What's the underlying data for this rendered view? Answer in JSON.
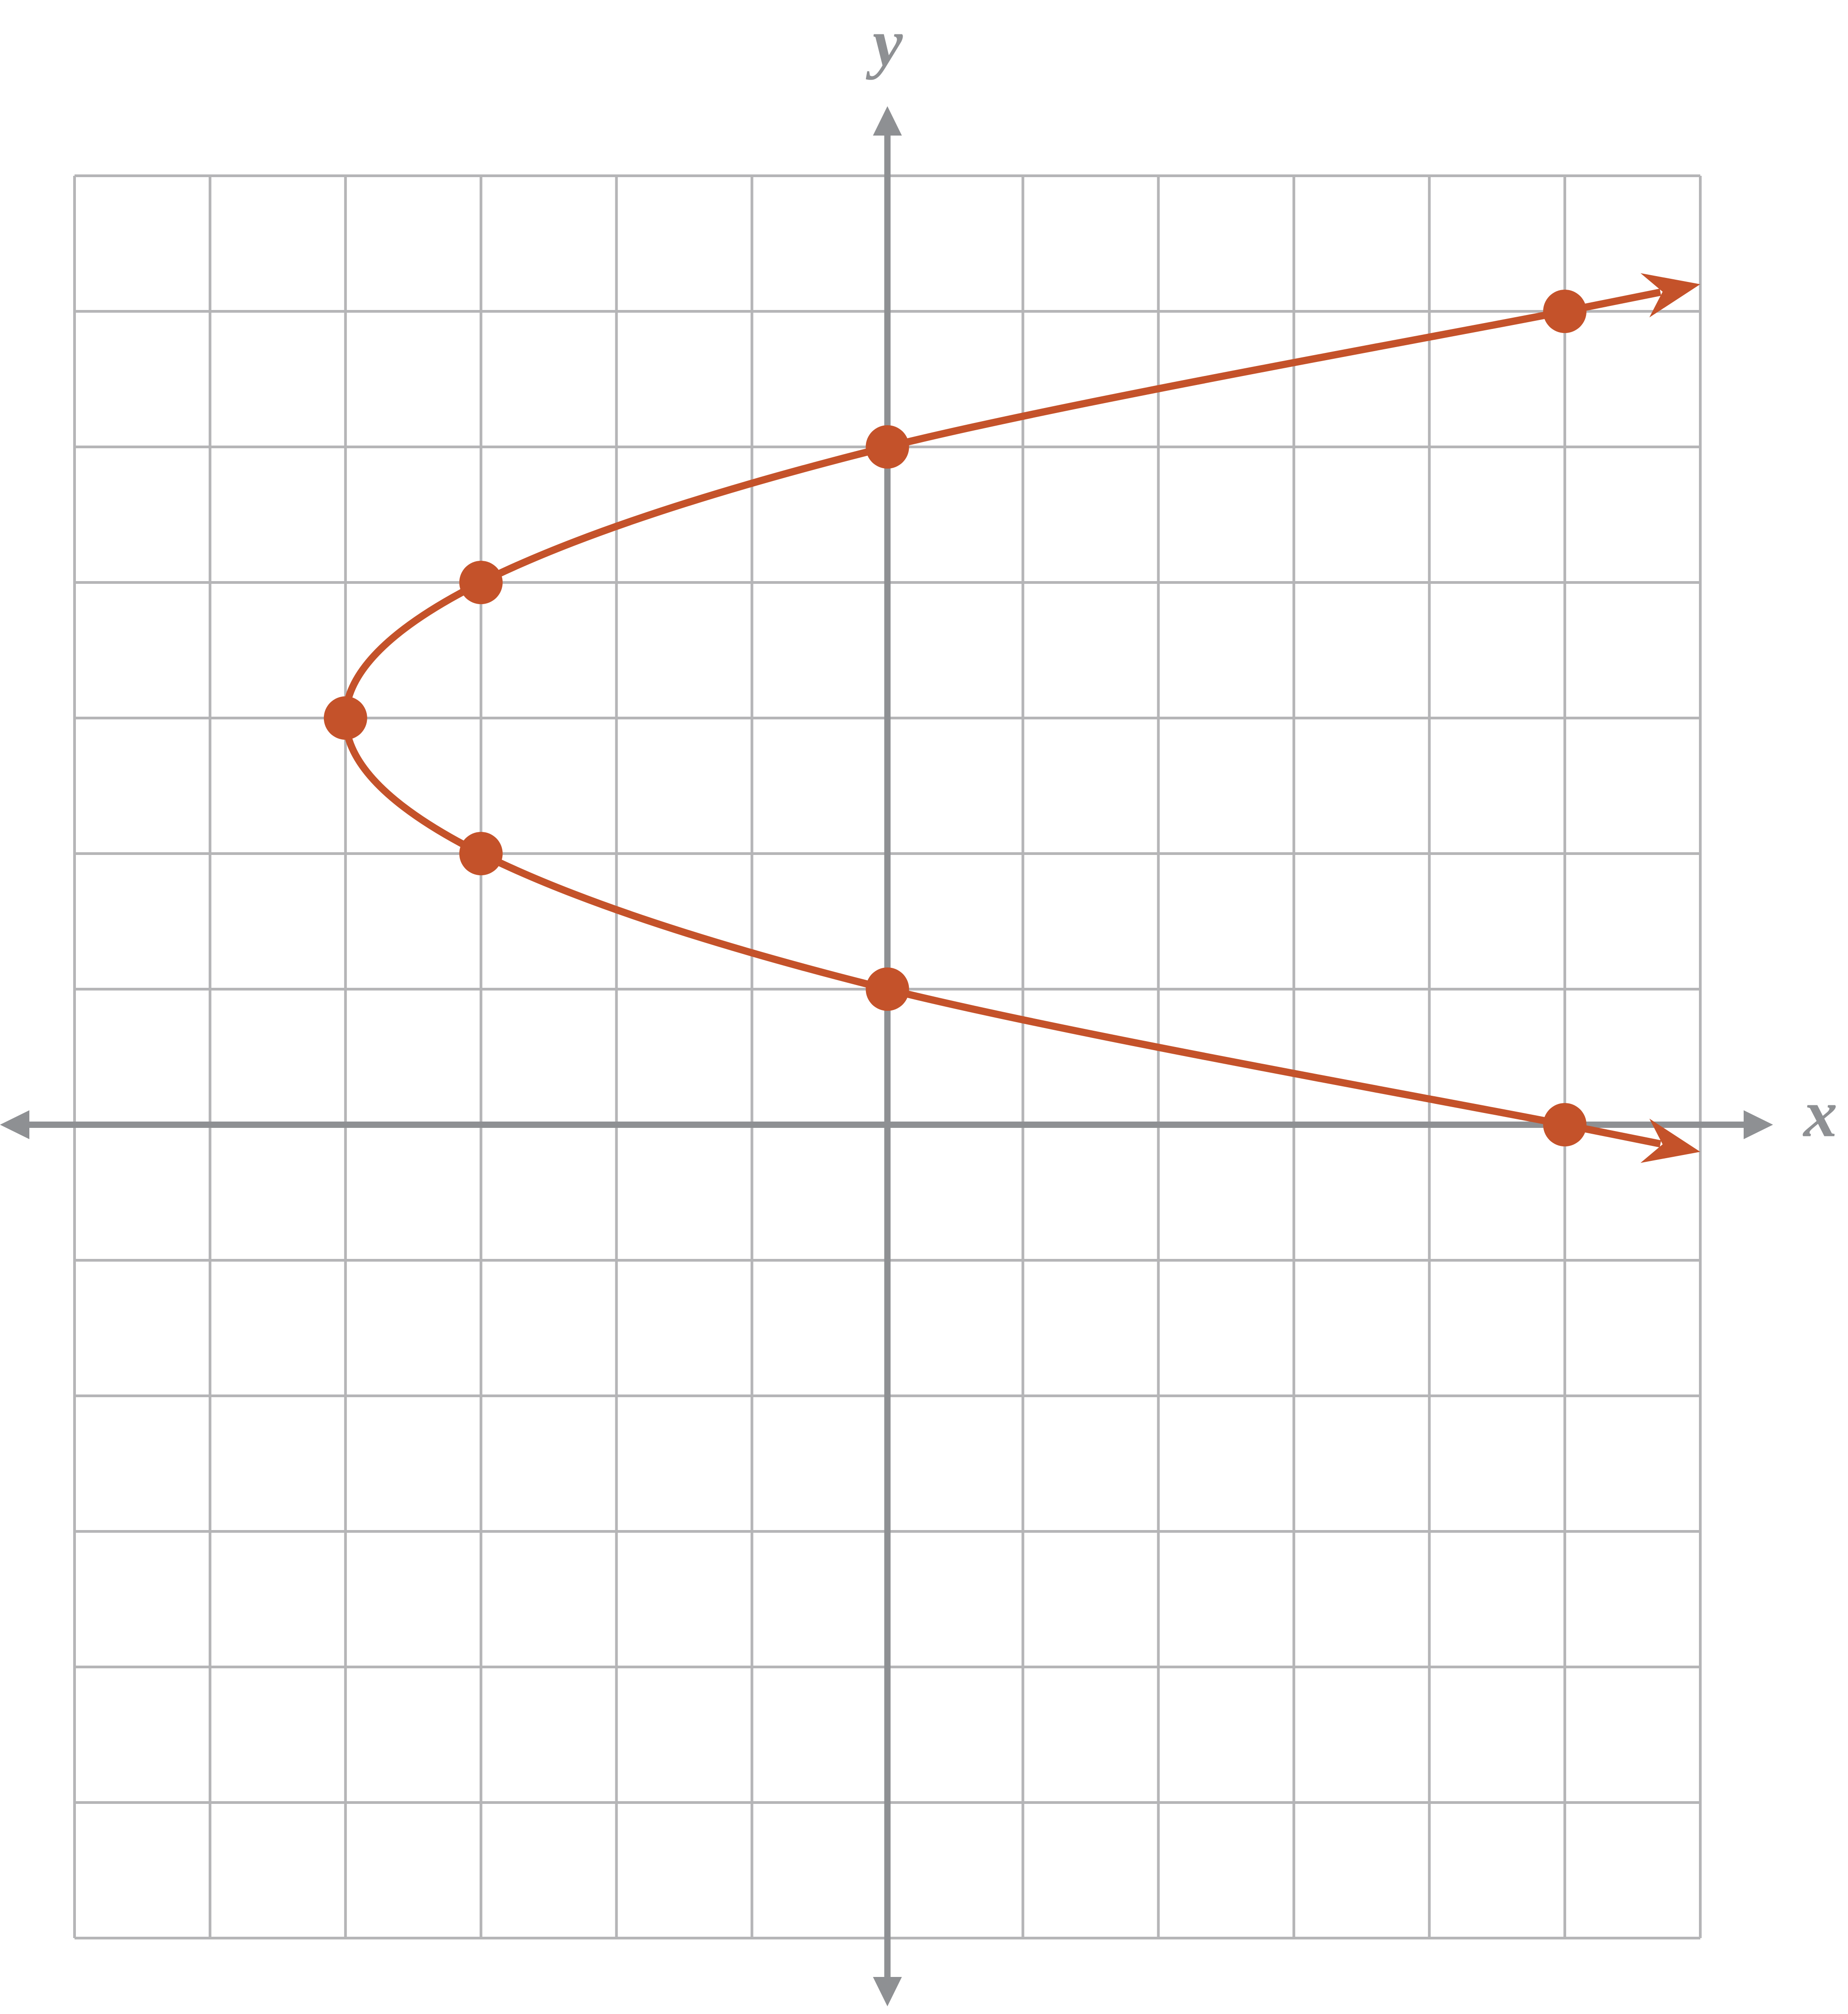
{
  "chart_data": {
    "type": "scatter",
    "x_label": "x",
    "y_label": "y",
    "x": [
      5,
      0,
      -3,
      -4,
      -3,
      0,
      5
    ],
    "values": [
      6,
      5,
      4,
      3,
      2,
      1,
      0
    ],
    "color": "#c4522a",
    "connect": true,
    "arrows": true,
    "xlim": [
      -6,
      6
    ],
    "ylim": [
      -6,
      7
    ],
    "xticks": [
      -6,
      -5,
      -4,
      -3,
      -2,
      -1,
      0,
      1,
      2,
      3,
      4,
      5,
      6
    ],
    "yticks": [
      -6,
      -5,
      -4,
      -3,
      -2,
      -1,
      0,
      1,
      2,
      3,
      4,
      5,
      6,
      7
    ],
    "grid": true
  }
}
